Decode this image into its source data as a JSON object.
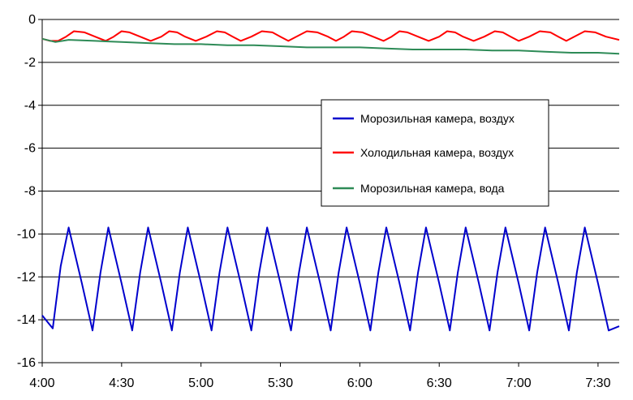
{
  "chart_data": {
    "type": "line",
    "title": "",
    "xlabel": "",
    "ylabel": "",
    "x_unit": "minutes since 4:00",
    "xlim": [
      0,
      218
    ],
    "ylim": [
      -16,
      0
    ],
    "yticks": [
      0,
      -2,
      -4,
      -6,
      -8,
      -10,
      -12,
      -14,
      -16
    ],
    "xticks": [
      {
        "x": 0,
        "label": "4:00"
      },
      {
        "x": 30,
        "label": "4:30"
      },
      {
        "x": 60,
        "label": "5:00"
      },
      {
        "x": 90,
        "label": "5:30"
      },
      {
        "x": 120,
        "label": "6:00"
      },
      {
        "x": 150,
        "label": "6:30"
      },
      {
        "x": 180,
        "label": "7:00"
      },
      {
        "x": 210,
        "label": "7:30"
      }
    ],
    "grid": true,
    "legend_position": "center-right",
    "series": [
      {
        "name": "Морозильная камера, воздух",
        "color": "#0000cc",
        "x": [
          0,
          4,
          7,
          10,
          15,
          19,
          22,
          25,
          30,
          34,
          37,
          40,
          45,
          49,
          52,
          55,
          60,
          64,
          67,
          70,
          75,
          79,
          82,
          85,
          90,
          94,
          97,
          100,
          105,
          109,
          112,
          115,
          120,
          124,
          127,
          130,
          135,
          139,
          142,
          145,
          150,
          154,
          157,
          160,
          165,
          169,
          172,
          175,
          180,
          184,
          187,
          190,
          195,
          199,
          202,
          205,
          210,
          214,
          218
        ],
        "y": [
          -13.8,
          -14.4,
          -11.5,
          -9.7,
          -12.3,
          -14.5,
          -11.8,
          -9.7,
          -12.3,
          -14.5,
          -11.8,
          -9.7,
          -12.3,
          -14.5,
          -11.8,
          -9.7,
          -12.3,
          -14.5,
          -11.8,
          -9.7,
          -12.3,
          -14.5,
          -11.8,
          -9.7,
          -12.3,
          -14.5,
          -11.8,
          -9.7,
          -12.3,
          -14.5,
          -11.8,
          -9.7,
          -12.3,
          -14.5,
          -11.8,
          -9.7,
          -12.3,
          -14.5,
          -11.8,
          -9.7,
          -12.3,
          -14.5,
          -11.8,
          -9.7,
          -12.3,
          -14.5,
          -11.8,
          -9.7,
          -12.3,
          -14.5,
          -11.8,
          -9.7,
          -12.3,
          -14.5,
          -11.8,
          -9.7,
          -12.3,
          -14.5,
          -14.3
        ]
      },
      {
        "name": "Холодильная камера, воздух",
        "color": "#ff0000",
        "x": [
          0,
          3,
          6,
          9,
          12,
          16,
          20,
          24,
          27,
          30,
          33,
          37,
          41,
          45,
          48,
          51,
          54,
          58,
          62,
          66,
          69,
          72,
          75,
          79,
          83,
          87,
          90,
          93,
          96,
          100,
          104,
          108,
          111,
          114,
          117,
          121,
          125,
          129,
          132,
          135,
          138,
          142,
          146,
          150,
          153,
          156,
          159,
          163,
          167,
          171,
          174,
          177,
          180,
          184,
          188,
          192,
          195,
          198,
          201,
          205,
          209,
          213,
          218
        ],
        "y": [
          -0.9,
          -1.0,
          -1.0,
          -0.8,
          -0.55,
          -0.6,
          -0.8,
          -1.0,
          -0.8,
          -0.55,
          -0.6,
          -0.8,
          -1.0,
          -0.8,
          -0.55,
          -0.6,
          -0.8,
          -1.0,
          -0.8,
          -0.55,
          -0.6,
          -0.8,
          -1.0,
          -0.8,
          -0.55,
          -0.6,
          -0.8,
          -1.0,
          -0.8,
          -0.55,
          -0.6,
          -0.8,
          -1.0,
          -0.8,
          -0.55,
          -0.6,
          -0.8,
          -1.0,
          -0.8,
          -0.55,
          -0.6,
          -0.8,
          -1.0,
          -0.8,
          -0.55,
          -0.6,
          -0.8,
          -1.0,
          -0.8,
          -0.55,
          -0.6,
          -0.8,
          -1.0,
          -0.8,
          -0.55,
          -0.6,
          -0.8,
          -1.0,
          -0.8,
          -0.55,
          -0.6,
          -0.8,
          -0.95
        ]
      },
      {
        "name": "Морозильная камера, вода",
        "color": "#2e8b57",
        "x": [
          0,
          5,
          10,
          20,
          30,
          40,
          50,
          60,
          70,
          80,
          90,
          100,
          110,
          120,
          130,
          140,
          150,
          160,
          170,
          180,
          190,
          200,
          210,
          218
        ],
        "y": [
          -0.9,
          -1.05,
          -0.95,
          -1.0,
          -1.05,
          -1.1,
          -1.15,
          -1.15,
          -1.2,
          -1.2,
          -1.25,
          -1.3,
          -1.3,
          -1.3,
          -1.35,
          -1.4,
          -1.4,
          -1.4,
          -1.45,
          -1.45,
          -1.5,
          -1.55,
          -1.55,
          -1.6
        ]
      }
    ]
  }
}
